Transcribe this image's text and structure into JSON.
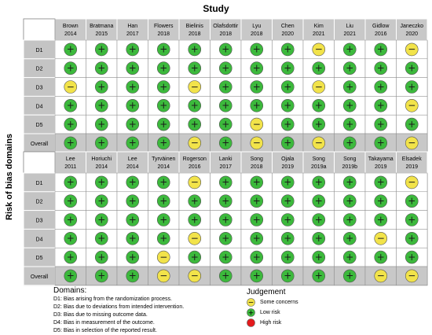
{
  "title": "Study",
  "y_axis_label": "Risk of bias domains",
  "colors": {
    "low": "#3cb93c",
    "some": "#f2e34a",
    "high": "#e41a1c",
    "header_bg": "#c8c8c8",
    "row_bg": "#c4c4c4",
    "cell_bg": "#ffffff",
    "overall_bg": "#c8c8c8",
    "border": "#8c8c8c"
  },
  "symbols": {
    "low": "+",
    "some": "−",
    "high": ""
  },
  "chart_data": {
    "type": "table",
    "domains_rows": [
      "D1",
      "D2",
      "D3",
      "D4",
      "D5",
      "Overall"
    ],
    "panels": [
      {
        "studies": [
          [
            "Brown",
            "2014"
          ],
          [
            "Bratmana",
            "2015"
          ],
          [
            "Han",
            "2017"
          ],
          [
            "Flowers",
            "2018"
          ],
          [
            "Bielinis",
            "2018"
          ],
          [
            "Olafsdottir",
            "2018"
          ],
          [
            "Lyu",
            "2018"
          ],
          [
            "Chen",
            "2020"
          ],
          [
            "Kim",
            "2021"
          ],
          [
            "Liu",
            "2021"
          ],
          [
            "Gidlow",
            "2016"
          ],
          [
            "Janeczko",
            "2020"
          ]
        ],
        "judgements": [
          [
            "low",
            "low",
            "low",
            "low",
            "low",
            "low",
            "low",
            "low",
            "some",
            "low",
            "low",
            "some"
          ],
          [
            "low",
            "low",
            "low",
            "low",
            "low",
            "low",
            "low",
            "low",
            "low",
            "low",
            "low",
            "low"
          ],
          [
            "some",
            "low",
            "low",
            "low",
            "some",
            "low",
            "low",
            "low",
            "some",
            "low",
            "low",
            "low"
          ],
          [
            "low",
            "low",
            "low",
            "low",
            "low",
            "low",
            "low",
            "low",
            "low",
            "low",
            "low",
            "some"
          ],
          [
            "low",
            "low",
            "low",
            "low",
            "low",
            "low",
            "some",
            "low",
            "low",
            "low",
            "low",
            "low"
          ],
          [
            "low",
            "low",
            "low",
            "low",
            "some",
            "low",
            "some",
            "low",
            "some",
            "low",
            "low",
            "some"
          ]
        ]
      },
      {
        "studies": [
          [
            "Lee",
            "2011"
          ],
          [
            "Horiuchi",
            "2014"
          ],
          [
            "Lee",
            "2014"
          ],
          [
            "Tyrväinen",
            "2014"
          ],
          [
            "Rogerson",
            "2016"
          ],
          [
            "Lanki",
            "2017"
          ],
          [
            "Song",
            "2018"
          ],
          [
            "Ojala",
            "2019"
          ],
          [
            "Song",
            "2019a"
          ],
          [
            "Song",
            "2019b"
          ],
          [
            "Takayama",
            "2019"
          ],
          [
            "Elsadek",
            "2019"
          ]
        ],
        "judgements": [
          [
            "low",
            "low",
            "low",
            "low",
            "some",
            "low",
            "low",
            "low",
            "low",
            "low",
            "low",
            "some"
          ],
          [
            "low",
            "low",
            "low",
            "low",
            "low",
            "low",
            "low",
            "low",
            "low",
            "low",
            "low",
            "low"
          ],
          [
            "low",
            "low",
            "low",
            "low",
            "low",
            "low",
            "low",
            "low",
            "low",
            "low",
            "low",
            "low"
          ],
          [
            "low",
            "low",
            "low",
            "low",
            "some",
            "low",
            "low",
            "low",
            "low",
            "low",
            "some",
            "low"
          ],
          [
            "low",
            "low",
            "low",
            "some",
            "low",
            "low",
            "low",
            "low",
            "low",
            "low",
            "low",
            "low"
          ],
          [
            "low",
            "low",
            "low",
            "some",
            "some",
            "low",
            "low",
            "low",
            "low",
            "low",
            "some",
            "some"
          ]
        ]
      }
    ]
  },
  "domains_legend": {
    "title": "Domains:",
    "items": [
      "D1: Bias arising from the randomization process.",
      "D2: Bias due to deviations from intended intervention.",
      "D3: Bias due to missing outcome data.",
      "D4: Bias in measurement of the outcome.",
      "D5: Bias in selection of the reported result."
    ]
  },
  "judgement_legend": {
    "title": "Judgement",
    "items": [
      {
        "level": "some",
        "label": "Some concerns"
      },
      {
        "level": "low",
        "label": "Low risk"
      },
      {
        "level": "high",
        "label": "High risk"
      }
    ]
  }
}
